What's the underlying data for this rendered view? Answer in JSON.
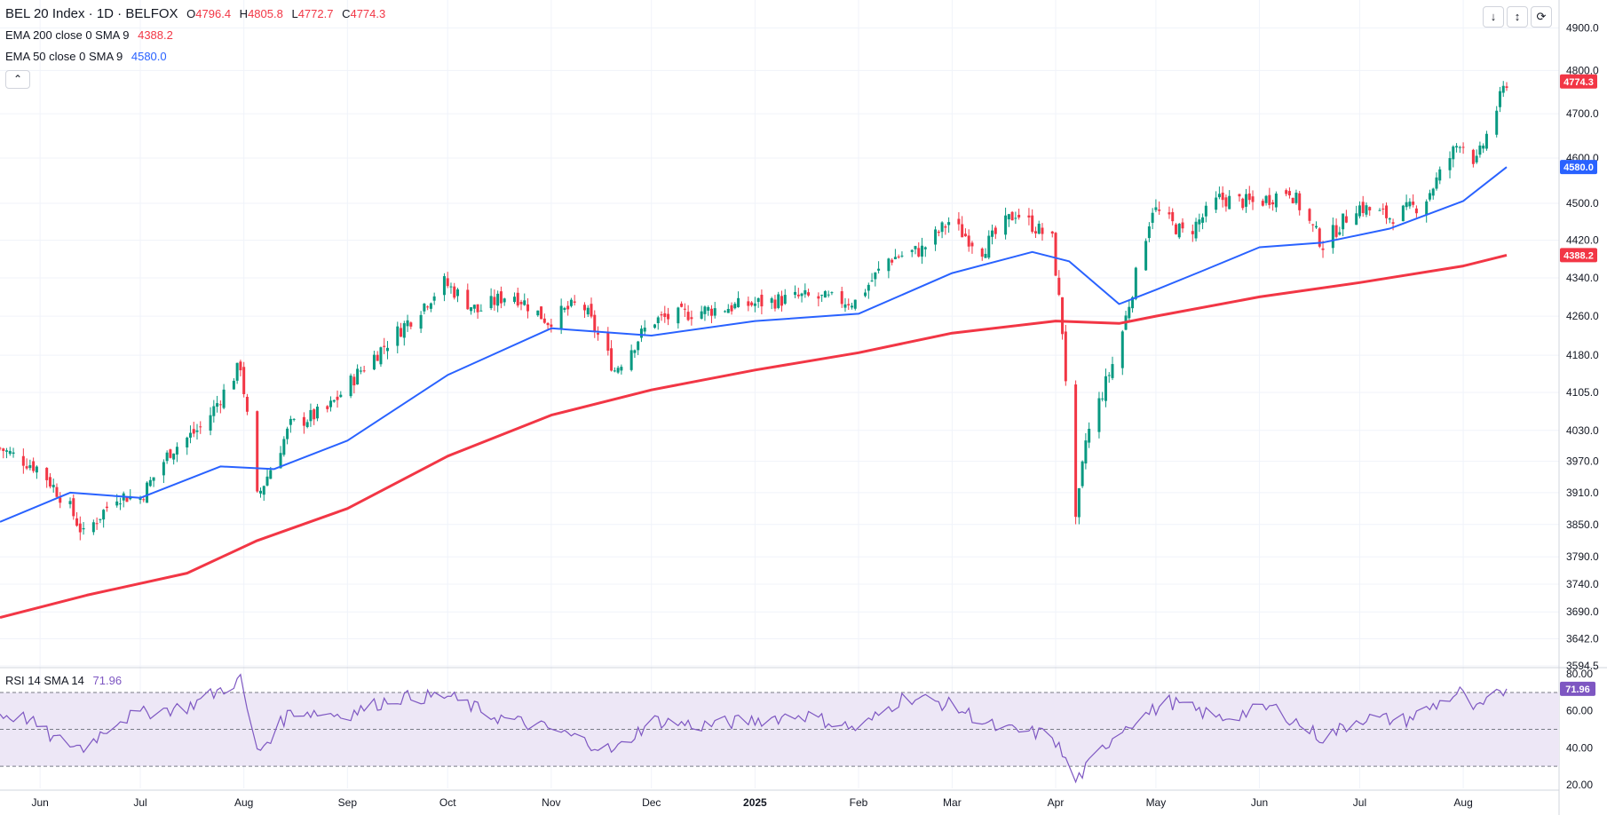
{
  "header": {
    "title": "BEL 20 Index · 1D · BELFOX",
    "ohlc": [
      {
        "key": "O",
        "value": "4796.4"
      },
      {
        "key": "H",
        "value": "4805.8"
      },
      {
        "key": "L",
        "value": "4772.7"
      },
      {
        "key": "C",
        "value": "4774.3"
      }
    ],
    "indicators": [
      {
        "label": "EMA 200 close 0 SMA 9",
        "value": "4388.2",
        "color": "#f23645"
      },
      {
        "label": "EMA 50 close 0 SMA 9",
        "value": "4580.0",
        "color": "#2962ff"
      }
    ],
    "collapse_icon": "chevron-up-icon"
  },
  "toolbar": {
    "icons": [
      "download-arrow-icon",
      "collapse-arrows-icon",
      "restore-icon"
    ]
  },
  "rsi": {
    "label": "RSI 14 SMA 14",
    "value": "71.96",
    "color": "#7e57c2",
    "badge": "71.96"
  },
  "price_badges": {
    "last": "4774.3",
    "ema50": "4580.0",
    "ema200": "4388.2"
  },
  "colors": {
    "up": "#089981",
    "down": "#f23645",
    "ema50": "#2962ff",
    "ema200": "#f23645",
    "rsi": "#7e57c2",
    "rsi_band": "#ede7f6"
  },
  "chart_data": [
    {
      "type": "candlestick",
      "title": "BEL 20 Index · 1D · BELFOX",
      "x_ticks": [
        "Jun",
        "Jul",
        "Aug",
        "Sep",
        "Oct",
        "Nov",
        "Dec",
        "2025",
        "Feb",
        "Mar",
        "Apr",
        "May",
        "Jun",
        "Jul",
        "Aug"
      ],
      "y_ticks": [
        "4900.0",
        "4800.0",
        "4700.0",
        "4600.0",
        "4500.0",
        "4420.0",
        "4340.0",
        "4260.0",
        "4180.0",
        "4105.0",
        "4030.0",
        "3970.0",
        "3910.0",
        "3850.0",
        "3790.0",
        "3740.0",
        "3690.0",
        "3642.0",
        "3594.5"
      ],
      "scale": "log",
      "ylim": [
        3594.5,
        4950
      ],
      "series": [
        {
          "name": "BEL 20 Index",
          "kind": "close",
          "points": [
            [
              "2024-05-20",
              3995
            ],
            [
              "2024-06-01",
              3955
            ],
            [
              "2024-06-10",
              3880
            ],
            [
              "2024-06-14",
              3830
            ],
            [
              "2024-06-24",
              3905
            ],
            [
              "2024-07-01",
              3900
            ],
            [
              "2024-07-10",
              3990
            ],
            [
              "2024-07-20",
              4040
            ],
            [
              "2024-07-31",
              4160
            ],
            [
              "2024-08-05",
              3900
            ],
            [
              "2024-08-15",
              4040
            ],
            [
              "2024-08-26",
              4070
            ],
            [
              "2024-09-05",
              4150
            ],
            [
              "2024-09-20",
              4255
            ],
            [
              "2024-09-30",
              4330
            ],
            [
              "2024-10-10",
              4270
            ],
            [
              "2024-10-20",
              4310
            ],
            [
              "2024-10-31",
              4250
            ],
            [
              "2024-11-10",
              4290
            ],
            [
              "2024-11-20",
              4150
            ],
            [
              "2024-12-01",
              4250
            ],
            [
              "2024-12-15",
              4270
            ],
            [
              "2024-12-31",
              4285
            ],
            [
              "2025-01-15",
              4300
            ],
            [
              "2025-01-31",
              4290
            ],
            [
              "2025-02-10",
              4380
            ],
            [
              "2025-02-20",
              4400
            ],
            [
              "2025-02-28",
              4460
            ],
            [
              "2025-03-10",
              4400
            ],
            [
              "2025-03-20",
              4480
            ],
            [
              "2025-03-31",
              4420
            ],
            [
              "2025-04-03",
              4230
            ],
            [
              "2025-04-07",
              3850
            ],
            [
              "2025-04-10",
              4010
            ],
            [
              "2025-04-20",
              4200
            ],
            [
              "2025-04-30",
              4490
            ],
            [
              "2025-05-10",
              4430
            ],
            [
              "2025-05-20",
              4510
            ],
            [
              "2025-05-31",
              4500
            ],
            [
              "2025-06-10",
              4530
            ],
            [
              "2025-06-20",
              4410
            ],
            [
              "2025-06-30",
              4495
            ],
            [
              "2025-07-10",
              4470
            ],
            [
              "2025-07-20",
              4500
            ],
            [
              "2025-07-31",
              4640
            ],
            [
              "2025-08-05",
              4590
            ],
            [
              "2025-08-14",
              4774.3
            ]
          ]
        },
        {
          "name": "EMA 200 close 0 SMA 9",
          "kind": "line",
          "points": [
            [
              "2024-05-20",
              3680
            ],
            [
              "2024-06-15",
              3720
            ],
            [
              "2024-07-15",
              3760
            ],
            [
              "2024-08-05",
              3820
            ],
            [
              "2024-09-01",
              3880
            ],
            [
              "2024-10-01",
              3980
            ],
            [
              "2024-11-01",
              4060
            ],
            [
              "2024-12-01",
              4110
            ],
            [
              "2025-01-01",
              4150
            ],
            [
              "2025-02-01",
              4185
            ],
            [
              "2025-03-01",
              4225
            ],
            [
              "2025-04-01",
              4250
            ],
            [
              "2025-04-20",
              4245
            ],
            [
              "2025-05-01",
              4260
            ],
            [
              "2025-06-01",
              4300
            ],
            [
              "2025-07-01",
              4330
            ],
            [
              "2025-08-01",
              4365
            ],
            [
              "2025-08-14",
              4388.2
            ]
          ]
        },
        {
          "name": "EMA 50 close 0 SMA 9",
          "kind": "line",
          "points": [
            [
              "2024-05-20",
              3855
            ],
            [
              "2024-06-10",
              3910
            ],
            [
              "2024-07-01",
              3900
            ],
            [
              "2024-07-25",
              3960
            ],
            [
              "2024-08-10",
              3955
            ],
            [
              "2024-09-01",
              4010
            ],
            [
              "2024-10-01",
              4140
            ],
            [
              "2024-11-01",
              4235
            ],
            [
              "2024-12-01",
              4220
            ],
            [
              "2025-01-01",
              4250
            ],
            [
              "2025-02-01",
              4265
            ],
            [
              "2025-03-01",
              4350
            ],
            [
              "2025-03-25",
              4395
            ],
            [
              "2025-04-05",
              4375
            ],
            [
              "2025-04-20",
              4285
            ],
            [
              "2025-05-01",
              4315
            ],
            [
              "2025-05-15",
              4355
            ],
            [
              "2025-06-01",
              4405
            ],
            [
              "2025-06-20",
              4415
            ],
            [
              "2025-07-10",
              4445
            ],
            [
              "2025-08-01",
              4505
            ],
            [
              "2025-08-14",
              4580.0
            ]
          ]
        }
      ]
    },
    {
      "type": "line",
      "title": "RSI 14 SMA 14",
      "y_ticks": [
        "80.00",
        "60.00",
        "40.00",
        "20.00"
      ],
      "ylim": [
        18,
        82
      ],
      "bands": [
        70,
        50,
        30
      ],
      "series": [
        {
          "name": "RSI 14 SMA 14",
          "points": [
            [
              "2024-05-20",
              58
            ],
            [
              "2024-05-28",
              56
            ],
            [
              "2024-06-05",
              45
            ],
            [
              "2024-06-14",
              40
            ],
            [
              "2024-06-24",
              55
            ],
            [
              "2024-07-05",
              60
            ],
            [
              "2024-07-15",
              62
            ],
            [
              "2024-07-31",
              77
            ],
            [
              "2024-08-05",
              37
            ],
            [
              "2024-08-15",
              60
            ],
            [
              "2024-09-01",
              58
            ],
            [
              "2024-09-15",
              67
            ],
            [
              "2024-10-01",
              68
            ],
            [
              "2024-10-15",
              57
            ],
            [
              "2024-11-01",
              50
            ],
            [
              "2024-11-20",
              38
            ],
            [
              "2024-12-01",
              55
            ],
            [
              "2024-12-15",
              52
            ],
            [
              "2025-01-01",
              55
            ],
            [
              "2025-01-15",
              58
            ],
            [
              "2025-02-01",
              50
            ],
            [
              "2025-02-15",
              68
            ],
            [
              "2025-03-01",
              63
            ],
            [
              "2025-03-15",
              50
            ],
            [
              "2025-03-31",
              47
            ],
            [
              "2025-04-07",
              22
            ],
            [
              "2025-04-20",
              50
            ],
            [
              "2025-05-05",
              65
            ],
            [
              "2025-05-20",
              56
            ],
            [
              "2025-06-05",
              62
            ],
            [
              "2025-06-20",
              45
            ],
            [
              "2025-07-01",
              56
            ],
            [
              "2025-07-15",
              55
            ],
            [
              "2025-07-31",
              70
            ],
            [
              "2025-08-05",
              60
            ],
            [
              "2025-08-14",
              71.96
            ]
          ]
        }
      ]
    }
  ]
}
